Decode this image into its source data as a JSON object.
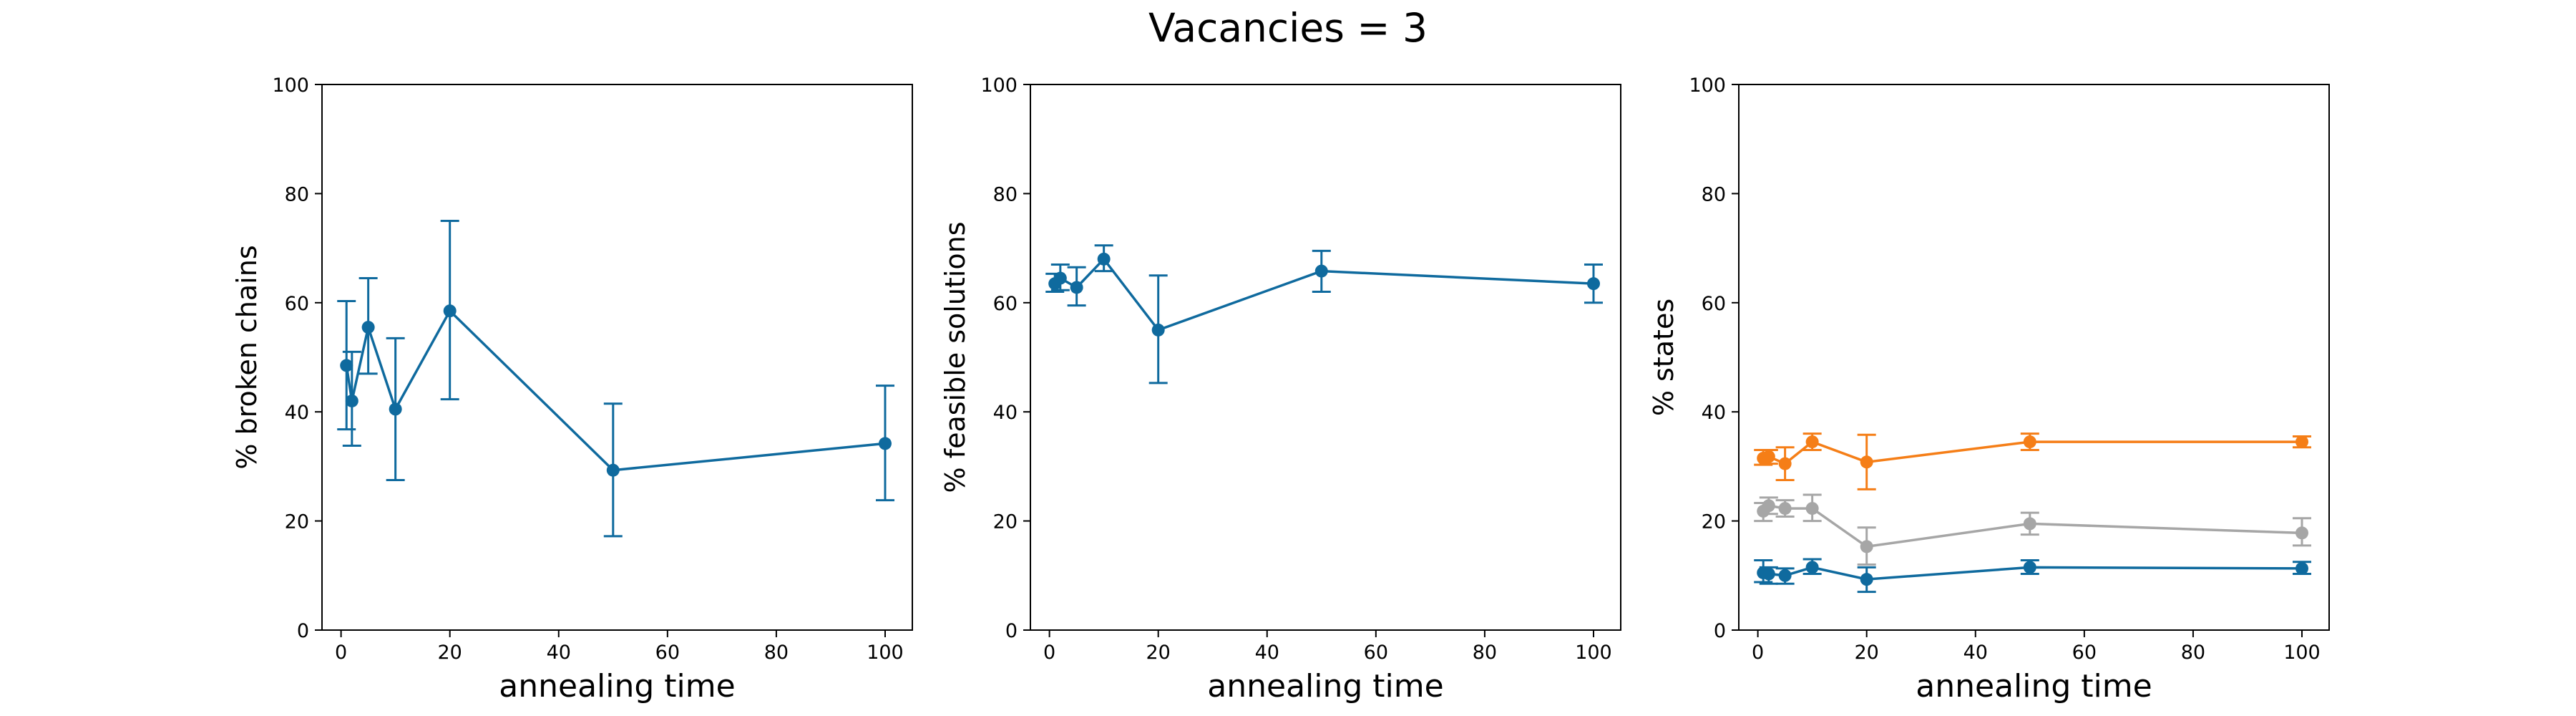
{
  "figure": {
    "title": "Vacancies = 3"
  },
  "colors": {
    "blue": "#0f6a9e",
    "orange": "#f57e17",
    "gray": "#a6a6a6"
  },
  "chart_data": [
    {
      "type": "line",
      "title": "",
      "xlabel": "annealing time",
      "ylabel": "% broken chains",
      "xlim": [
        -3.5,
        105
      ],
      "ylim": [
        0,
        100
      ],
      "xticks": [
        0,
        20,
        40,
        60,
        80,
        100
      ],
      "yticks": [
        0,
        20,
        40,
        60,
        80,
        100
      ],
      "grid": false,
      "x": [
        1,
        2,
        5,
        10,
        20,
        50,
        100
      ],
      "series": [
        {
          "color": "blue",
          "marker": "circle",
          "values": [
            48.5,
            42,
            55.5,
            40.5,
            58.5,
            29.3,
            34.2
          ],
          "err_lo": [
            36.8,
            33.8,
            47,
            27.5,
            42.3,
            17.2,
            23.8
          ],
          "err_hi": [
            60.3,
            51,
            64.5,
            53.5,
            75,
            41.5,
            44.8
          ]
        }
      ]
    },
    {
      "type": "line",
      "title": "",
      "xlabel": "annealing time",
      "ylabel": "% feasible solutions",
      "xlim": [
        -3.5,
        105
      ],
      "ylim": [
        0,
        100
      ],
      "xticks": [
        0,
        20,
        40,
        60,
        80,
        100
      ],
      "yticks": [
        0,
        20,
        40,
        60,
        80,
        100
      ],
      "grid": false,
      "x": [
        1,
        2,
        5,
        10,
        20,
        50,
        100
      ],
      "series": [
        {
          "color": "blue",
          "marker": "circle",
          "values": [
            63.5,
            64.5,
            62.8,
            68,
            55,
            65.8,
            63.5
          ],
          "err_lo": [
            62,
            62.3,
            59.5,
            65.8,
            45.3,
            62,
            60
          ],
          "err_hi": [
            65.3,
            67,
            66.5,
            70.5,
            65,
            69.5,
            67
          ]
        }
      ]
    },
    {
      "type": "line",
      "title": "",
      "xlabel": "annealing time",
      "ylabel": "% states",
      "xlim": [
        -3.5,
        105
      ],
      "ylim": [
        0,
        100
      ],
      "xticks": [
        0,
        20,
        40,
        60,
        80,
        100
      ],
      "yticks": [
        0,
        20,
        40,
        60,
        80,
        100
      ],
      "grid": false,
      "x": [
        1,
        2,
        5,
        10,
        20,
        50,
        100
      ],
      "series": [
        {
          "color": "orange",
          "marker": "circle",
          "values": [
            31.5,
            31.8,
            30.5,
            34.5,
            30.8,
            34.5,
            34.5
          ],
          "err_lo": [
            30.3,
            30.5,
            27.5,
            33,
            25.8,
            33,
            33.5
          ],
          "err_hi": [
            33,
            33,
            33.5,
            36,
            35.8,
            36,
            35.5
          ]
        },
        {
          "color": "gray",
          "marker": "circle",
          "values": [
            21.8,
            22.8,
            22.3,
            22.3,
            15.3,
            19.5,
            17.8
          ],
          "err_lo": [
            20,
            21.3,
            20.8,
            20,
            12,
            17.5,
            15.5
          ],
          "err_hi": [
            23.3,
            24.3,
            23.8,
            24.8,
            18.8,
            21.5,
            20.5
          ]
        },
        {
          "color": "blue",
          "marker": "circle",
          "values": [
            10.5,
            10.3,
            10,
            11.5,
            9.3,
            11.5,
            11.3
          ],
          "err_lo": [
            8.8,
            8.5,
            8.5,
            10.3,
            7,
            10.3,
            10.3
          ],
          "err_hi": [
            12.8,
            11.5,
            11.3,
            13,
            11.5,
            12.8,
            12.5
          ]
        }
      ]
    }
  ]
}
